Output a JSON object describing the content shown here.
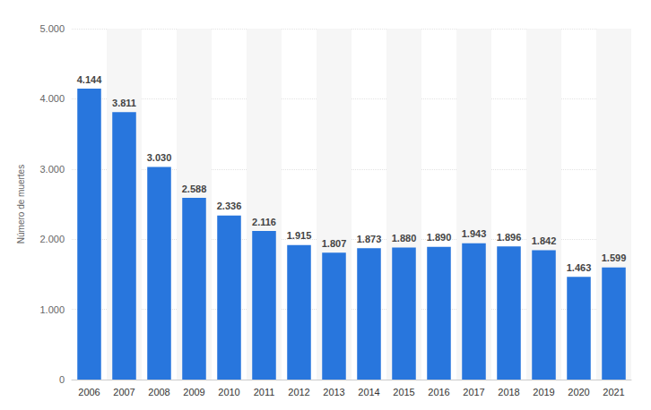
{
  "chart_data": {
    "type": "bar",
    "y_label": "Número de muertes",
    "categories": [
      "2006",
      "2007",
      "2008",
      "2009",
      "2010",
      "2011",
      "2012",
      "2013",
      "2014",
      "2015",
      "2016",
      "2017",
      "2018",
      "2019",
      "2020",
      "2021"
    ],
    "values": [
      4144,
      3811,
      3030,
      2588,
      2336,
      2116,
      1915,
      1807,
      1873,
      1880,
      1890,
      1943,
      1896,
      1842,
      1463,
      1599
    ],
    "value_labels": [
      "4.144",
      "3.811",
      "3.030",
      "2.588",
      "2.336",
      "2.116",
      "1.915",
      "1.807",
      "1.873",
      "1.880",
      "1.890",
      "1.943",
      "1.896",
      "1.842",
      "1.463",
      "1.599"
    ],
    "color": "#2876dd",
    "ylim": [
      0,
      5000
    ],
    "yticks": [
      0,
      {
        "value": 1000,
        "label": "1.000"
      },
      {
        "value": 2000,
        "label": "2.000"
      },
      {
        "value": 3000,
        "label": "3.000"
      },
      {
        "value": 4000,
        "label": "4.000"
      },
      {
        "value": 5000,
        "label": "5.000"
      }
    ],
    "grid": true,
    "data_labels": true
  }
}
